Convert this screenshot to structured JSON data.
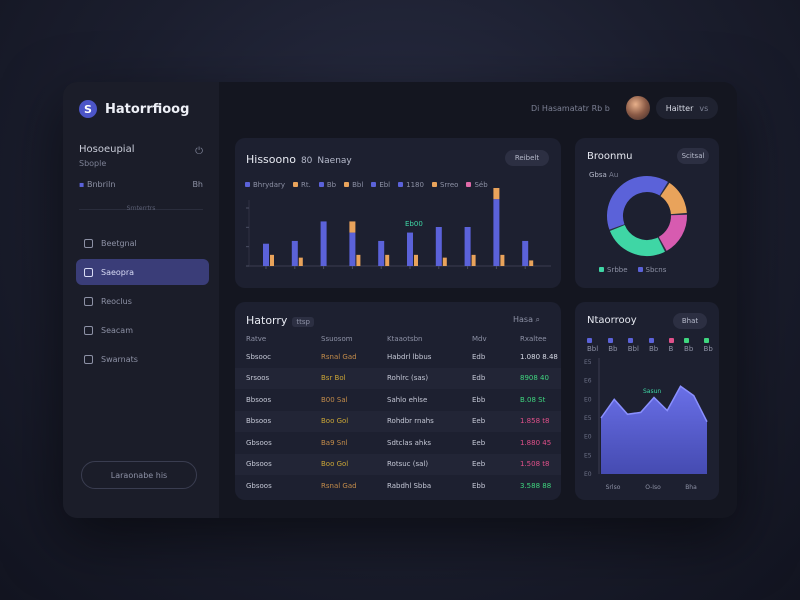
{
  "app": {
    "title": "Hatorrfioog",
    "logo_letter": "S",
    "topbar_status": "Di Hasamatatr Rb b",
    "user_name": "Haitter",
    "user_sub": "vs"
  },
  "sidebar": {
    "profile_name": "Hosoeupial",
    "profile_sub": "Sbople",
    "filter_left": "Bnbriln",
    "filter_right": "Bh",
    "section_label": "Srnterrtrs",
    "items": [
      {
        "label": "Beetgnal",
        "icon": "home-icon"
      },
      {
        "label": "Saeopra",
        "icon": "grid-icon"
      },
      {
        "label": "Reoclus",
        "icon": "document-icon"
      },
      {
        "label": "Seacam",
        "icon": "settings-icon"
      },
      {
        "label": "Swarnats",
        "icon": "user-icon"
      }
    ],
    "active_index": 1,
    "logout_label": "Laraonabe his"
  },
  "overview": {
    "title": "Hissoono",
    "title_suffix": "80",
    "title_extra": "Naenay",
    "filter_label": "Reibelt",
    "legend": [
      {
        "label": "Bhrydary",
        "color": "#5b62d9"
      },
      {
        "label": "Rt.",
        "color": "#e9a35b"
      },
      {
        "label": "Bb",
        "color": "#5b62d9"
      },
      {
        "label": "Bbl",
        "color": "#e9a35b"
      },
      {
        "label": "Ebl",
        "color": "#5b62d9"
      },
      {
        "label": "1180",
        "color": "#5b62d9"
      },
      {
        "label": "Srreo",
        "color": "#e9a35b"
      },
      {
        "label": "Séb",
        "color": "#e06aa8"
      }
    ],
    "annotation": "Eb00"
  },
  "chart_data": [
    {
      "type": "bar",
      "title": "Hissoono",
      "categories": [
        "1",
        "2",
        "3",
        "4",
        "5",
        "6",
        "7",
        "8",
        "9",
        "10"
      ],
      "series": [
        {
          "name": "Bhrydary",
          "values": [
            8,
            9,
            16,
            12,
            9,
            12,
            14,
            14,
            24,
            9
          ]
        },
        {
          "name": "Rt.",
          "values": [
            4,
            3,
            0,
            4,
            4,
            4,
            3,
            4,
            4,
            2
          ]
        },
        {
          "name": "Srreo",
          "values": [
            0,
            0,
            0,
            4,
            0,
            0,
            0,
            0,
            4,
            0
          ]
        }
      ],
      "ylim": [
        0,
        28
      ],
      "grid": false
    },
    {
      "type": "pie",
      "title": "Broonmu",
      "categories": [
        "blue",
        "orange",
        "pink",
        "teal"
      ],
      "values": [
        40,
        15,
        18,
        27
      ],
      "legend": [
        "Srbbe",
        "Sbcns"
      ]
    },
    {
      "type": "area",
      "title": "Ntaorrooy",
      "x": [
        0,
        1,
        2,
        3,
        4,
        5,
        6,
        7,
        8
      ],
      "values": [
        30,
        40,
        32,
        33,
        41,
        34,
        47,
        42,
        28
      ],
      "ylim": [
        0,
        60
      ],
      "xticks": [
        "Srlso",
        "O-Iso",
        "Bha"
      ],
      "annotation": "Sasun"
    }
  ],
  "donut": {
    "title": "Broonmu",
    "filter_label": "Scitsal",
    "caption": "Gbsa",
    "caption_sub": "Au",
    "legend": [
      {
        "label": "Srbbe",
        "color": "#3fd6a5"
      },
      {
        "label": "Sbcns",
        "color": "#5b62d9"
      }
    ]
  },
  "history": {
    "title": "Hatorry",
    "title_badge": "ttsp",
    "filter_label": "Hasa",
    "columns": [
      "Ratve",
      "Ssuosom",
      "Ktaaotsbn",
      "Mdv",
      "Rxaltee"
    ],
    "rows": [
      {
        "c0": "Sbsooc",
        "c1": "Rsnal Gad",
        "c2": "Habdrl lbbus",
        "c3": "Edb",
        "c4": "1.080 8.48",
        "c1color": "#c28b4a",
        "c4color": "#d8dbe6"
      },
      {
        "c0": "Srsoos",
        "c1": "Bsr Bol",
        "c2": "Rohlrc (sas)",
        "c3": "Edb",
        "c4": "8908 40",
        "c1color": "#c9a436",
        "c4color": "#3fd67f"
      },
      {
        "c0": "Bbsoos",
        "c1": "B00 Sal",
        "c2": "Sahlo ehlse",
        "c3": "Ebb",
        "c4": "B.08 St",
        "c1color": "#c28b4a",
        "c4color": "#3fd67f"
      },
      {
        "c0": "Bbsoos",
        "c1": "Boo Gol",
        "c2": "Rohdbr rnahs",
        "c3": "Eeb",
        "c4": "1.858 t8",
        "c1color": "#c9a436",
        "c4color": "#e0508a"
      },
      {
        "c0": "Gbsoos",
        "c1": "Ba9 Snl",
        "c2": "Sdtclas ahks",
        "c3": "Eeb",
        "c4": "1.880 45",
        "c1color": "#c28b4a",
        "c4color": "#e0508a"
      },
      {
        "c0": "Gbsoos",
        "c1": "Boo Gol",
        "c2": "Rotsuc (sal)",
        "c3": "Eeb",
        "c4": "1.508 t8",
        "c1color": "#c9a436",
        "c4color": "#e0508a"
      },
      {
        "c0": "Gbsoos",
        "c1": "Rsnal Gad",
        "c2": "Rabdhl Sbba",
        "c3": "Ebb",
        "c4": "3.588 88",
        "c1color": "#c28b4a",
        "c4color": "#3fd67f"
      }
    ]
  },
  "trend": {
    "title": "Ntaorrooy",
    "filter_label": "Bhat",
    "legend": [
      {
        "label": "Bbl",
        "color": "#5b62d9"
      },
      {
        "label": "Bb",
        "color": "#5b62d9"
      },
      {
        "label": "Bbl",
        "color": "#5b62d9"
      },
      {
        "label": "Bb",
        "color": "#5b62d9"
      },
      {
        "label": "B",
        "color": "#e0508a"
      },
      {
        "label": "Bb",
        "color": "#3fd67f"
      },
      {
        "label": "Bb",
        "color": "#3fd67f"
      }
    ],
    "yticks": [
      "E5",
      "E6",
      "E0",
      "E5",
      "E0",
      "E5",
      "E0"
    ]
  },
  "colors": {
    "accent": "#5b62d9",
    "orange": "#e9a35b",
    "pink": "#e06aa8",
    "teal": "#3fd6a5",
    "green": "#3fd67f",
    "red": "#e0508a"
  }
}
